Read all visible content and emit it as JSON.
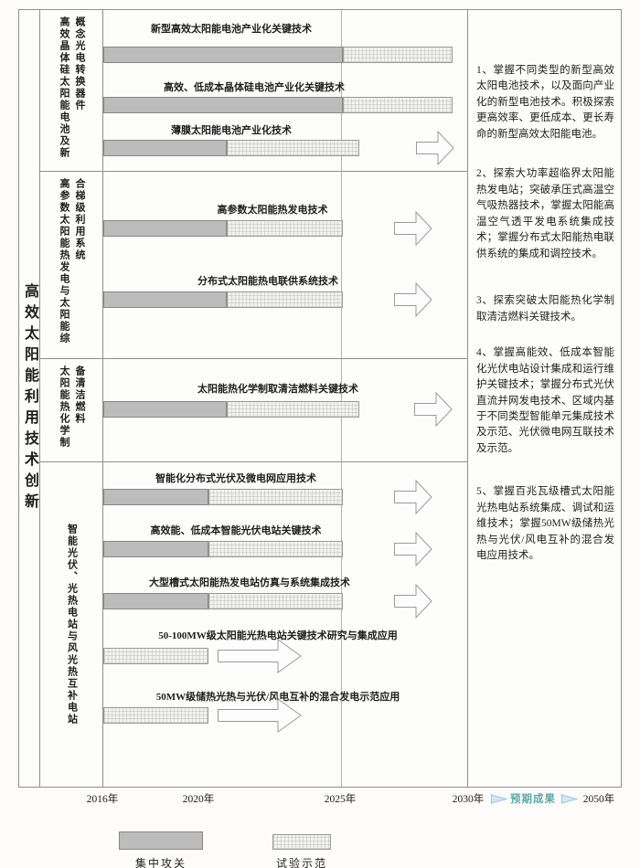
{
  "title": "高效太阳能利用技术创新",
  "sections": [
    {
      "category": "高效晶体硅太阳能电池及新概念光电转换器件",
      "rows": [
        {
          "label": "新型高效太阳能电池产业化关键技术",
          "phases": [
            {
              "type": "集中攻关",
              "from": 2016,
              "to": 2025
            },
            {
              "type": "试验示范",
              "from": 2025,
              "to": 2030
            }
          ],
          "expected_arrow": false
        },
        {
          "label": "高效、低成本晶体硅电池产业化关键技术",
          "phases": [
            {
              "type": "集中攻关",
              "from": 2016,
              "to": 2025
            },
            {
              "type": "试验示范",
              "from": 2025,
              "to": 2030
            }
          ],
          "expected_arrow": false
        },
        {
          "label": "薄膜太阳能电池产业化技术",
          "phases": [
            {
              "type": "集中攻关",
              "from": 2016,
              "to": 2021
            },
            {
              "type": "试验示范",
              "from": 2021,
              "to": 2026
            }
          ],
          "expected_arrow": true
        }
      ]
    },
    {
      "category": "高参数太阳能热发电与太阳能综合梯级利用系统",
      "rows": [
        {
          "label": "高参数太阳能热发电技术",
          "phases": [
            {
              "type": "集中攻关",
              "from": 2016,
              "to": 2021
            },
            {
              "type": "试验示范",
              "from": 2021,
              "to": 2025
            }
          ],
          "expected_arrow": true
        },
        {
          "label": "分布式太阳能热电联供系统技术",
          "phases": [
            {
              "type": "集中攻关",
              "from": 2016,
              "to": 2021
            },
            {
              "type": "试验示范",
              "from": 2021,
              "to": 2025
            }
          ],
          "expected_arrow": true
        }
      ]
    },
    {
      "category": "太阳能热化学制备清洁燃料",
      "rows": [
        {
          "label": "太阳能热化学制取清洁燃料关键技术",
          "phases": [
            {
              "type": "集中攻关",
              "from": 2016,
              "to": 2021
            },
            {
              "type": "试验示范",
              "from": 2021,
              "to": 2026
            }
          ],
          "expected_arrow": true
        }
      ]
    },
    {
      "category": "智能光伏、光热电站与风光热互补电站",
      "rows": [
        {
          "label": "智能化分布式光伏及微电网应用技术",
          "phases": [
            {
              "type": "集中攻关",
              "from": 2016,
              "to": 2020
            },
            {
              "type": "试验示范",
              "from": 2020,
              "to": 2025
            }
          ],
          "expected_arrow": true
        },
        {
          "label": "高效能、低成本智能光伏电站关键技术",
          "phases": [
            {
              "type": "集中攻关",
              "from": 2016,
              "to": 2020
            },
            {
              "type": "试验示范",
              "from": 2020,
              "to": 2025
            }
          ],
          "expected_arrow": true
        },
        {
          "label": "大型槽式太阳能热发电站仿真与系统集成技术",
          "phases": [
            {
              "type": "集中攻关",
              "from": 2016,
              "to": 2020
            },
            {
              "type": "试验示范",
              "from": 2020,
              "to": 2025
            }
          ],
          "expected_arrow": true
        },
        {
          "label": "50-100MW级太阳能光热电站关键技术研究与集成应用",
          "phases": [
            {
              "type": "试验示范",
              "from": 2016,
              "to": 2020
            }
          ],
          "expected_arrow": true
        },
        {
          "label": "50MW级储热光热与光伏/风电互补的混合发电示范应用",
          "phases": [
            {
              "type": "试验示范",
              "from": 2016,
              "to": 2020
            }
          ],
          "expected_arrow": true
        }
      ]
    }
  ],
  "notes": [
    "1、掌握不同类型的新型高效太阳电池技术，以及面向产业化的新型电池技术。积极探索更高效率、更低成本、更长寿命的新型高效太阳能电池。",
    "2、探索大功率超临界太阳能热发电站；突破承压式高温空气吸热器技术，掌握太阳能高温空气透平发电系统集成技术；掌握分布式太阳能热电联供系统的集成和调控技术。",
    "3、探索突破太阳能热化学制取清洁燃料关键技术。",
    "4、掌握高能效、低成本智能化光伏电站设计集成和运行维护关键技术；掌握分布式光伏直流并网发电技术、区域内基于不同类型智能单元集成技术及示范、光伏微电网互联技术及示范。",
    "5、掌握百兆瓦级槽式太阳能光热电站系统集成、调试和运维技术；掌握50MW级储热光热与光伏/风电互补的混合发电应用技术。"
  ],
  "axis": {
    "ticks": [
      "2016年",
      "2020年",
      "2025年",
      "2030年",
      "2050年"
    ],
    "expected_label": "预期成果"
  },
  "legend": [
    {
      "label": "集中攻关",
      "type": "dark"
    },
    {
      "label": "试验示范",
      "type": "light"
    }
  ],
  "colors": {
    "dark_bar": "#bcbcbc",
    "light_bar": "#f2f2f0",
    "border_line": "#8f8f8f",
    "expected_text": "#5ba8a8",
    "expected_arrow_fill": "#d3e6f3"
  }
}
